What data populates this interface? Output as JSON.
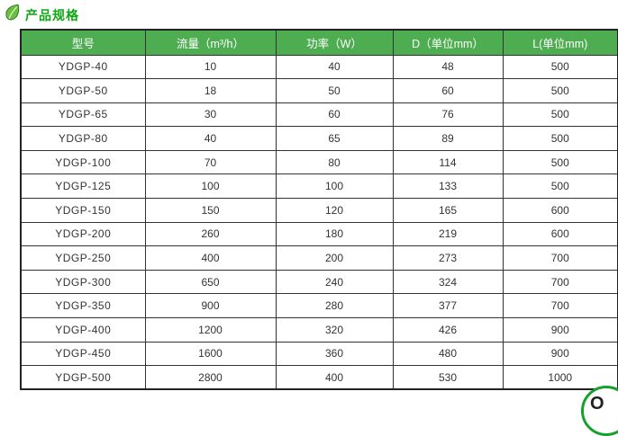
{
  "title": {
    "text": "产品规格",
    "color": "#0fa714",
    "icon": "leaf-icon"
  },
  "table": {
    "header_bg": "#4fad51",
    "header_text_color": "#ffffff",
    "border_color": "#333333",
    "columns": [
      "型号",
      "流量（m³/h）",
      "功率（W）",
      "D（单位mm）",
      "L(单位mm)"
    ],
    "rows": [
      [
        "YDGP-40",
        "10",
        "40",
        "48",
        "500"
      ],
      [
        "YDGP-50",
        "18",
        "50",
        "60",
        "500"
      ],
      [
        "YDGP-65",
        "30",
        "60",
        "76",
        "500"
      ],
      [
        "YDGP-80",
        "40",
        "65",
        "89",
        "500"
      ],
      [
        "YDGP-100",
        "70",
        "80",
        "114",
        "500"
      ],
      [
        "YDGP-125",
        "100",
        "100",
        "133",
        "500"
      ],
      [
        "YDGP-150",
        "150",
        "120",
        "165",
        "600"
      ],
      [
        "YDGP-200",
        "260",
        "180",
        "219",
        "600"
      ],
      [
        "YDGP-250",
        "400",
        "200",
        "273",
        "700"
      ],
      [
        "YDGP-300",
        "650",
        "240",
        "324",
        "700"
      ],
      [
        "YDGP-350",
        "900",
        "280",
        "377",
        "700"
      ],
      [
        "YDGP-400",
        "1200",
        "320",
        "426",
        "900"
      ],
      [
        "YDGP-450",
        "1600",
        "360",
        "480",
        "900"
      ],
      [
        "YDGP-500",
        "2800",
        "400",
        "530",
        "1000"
      ]
    ]
  },
  "watermark": {
    "icon": "partial-circle-logo",
    "visible_text": "O",
    "ring_color": "#16a02c"
  }
}
